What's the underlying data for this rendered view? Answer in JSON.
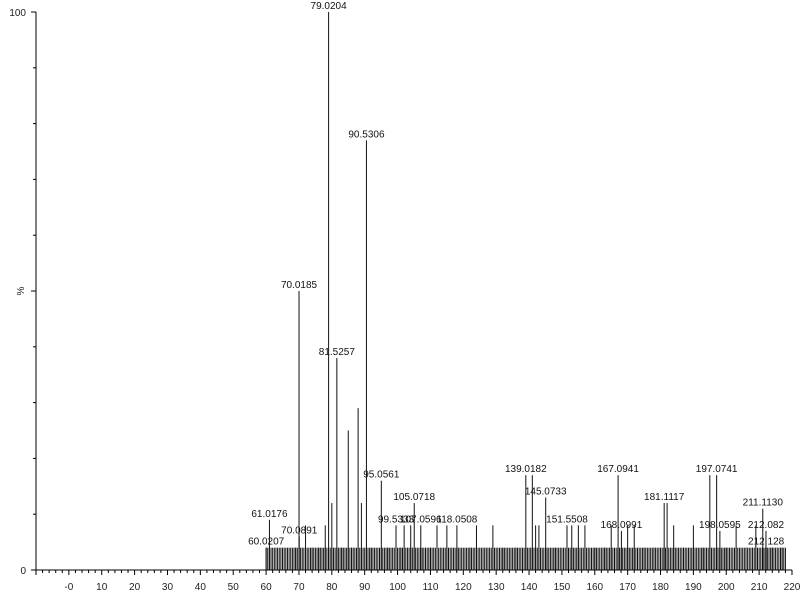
{
  "chart_data": {
    "type": "bar",
    "subtype": "mass-spectrum-stick",
    "title": "",
    "xlabel": "",
    "ylabel": "%",
    "xlim": [
      -10,
      220
    ],
    "ylim": [
      0,
      100
    ],
    "x_ticks": [
      0,
      10,
      20,
      30,
      40,
      50,
      60,
      70,
      80,
      90,
      100,
      110,
      120,
      130,
      140,
      150,
      160,
      170,
      180,
      190,
      200,
      210,
      220
    ],
    "x_tick_labels": [
      "-0",
      "10",
      "20",
      "30",
      "40",
      "50",
      "60",
      "70",
      "80",
      "90",
      "100",
      "110",
      "120",
      "130",
      "140",
      "150",
      "160",
      "170",
      "180",
      "190",
      "200",
      "210",
      "220"
    ],
    "y_ticks": [
      0,
      50,
      100
    ],
    "y_tick_labels": [
      "0",
      "%",
      "100"
    ],
    "grid": false,
    "legend": "none",
    "bar_color": "#111111",
    "peaks": [
      {
        "x": 60.02,
        "y": 4,
        "label": "60.0207"
      },
      {
        "x": 61.02,
        "y": 9,
        "label": "61.0176"
      },
      {
        "x": 69.0,
        "y": 4
      },
      {
        "x": 70.02,
        "y": 50,
        "label": "70.0185"
      },
      {
        "x": 70.09,
        "y": 6,
        "label": "70.0891"
      },
      {
        "x": 72.0,
        "y": 8
      },
      {
        "x": 74.0,
        "y": 4
      },
      {
        "x": 76.0,
        "y": 4
      },
      {
        "x": 78.0,
        "y": 8
      },
      {
        "x": 79.02,
        "y": 100,
        "label": "79.0204"
      },
      {
        "x": 80.0,
        "y": 12
      },
      {
        "x": 81.53,
        "y": 38,
        "label": "81.5257"
      },
      {
        "x": 83.0,
        "y": 4
      },
      {
        "x": 85.0,
        "y": 25
      },
      {
        "x": 86.0,
        "y": 4
      },
      {
        "x": 88.0,
        "y": 29
      },
      {
        "x": 89.0,
        "y": 12
      },
      {
        "x": 90.53,
        "y": 77,
        "label": "90.5306"
      },
      {
        "x": 92.0,
        "y": 4
      },
      {
        "x": 95.06,
        "y": 16,
        "label": "95.0561"
      },
      {
        "x": 97.0,
        "y": 4
      },
      {
        "x": 99.53,
        "y": 8,
        "label": "99.5333"
      },
      {
        "x": 101.0,
        "y": 4
      },
      {
        "x": 102.0,
        "y": 8
      },
      {
        "x": 104.0,
        "y": 8
      },
      {
        "x": 105.07,
        "y": 12,
        "label": "105.0718"
      },
      {
        "x": 107.06,
        "y": 8,
        "label": "107.0596"
      },
      {
        "x": 110.0,
        "y": 4
      },
      {
        "x": 112.0,
        "y": 8
      },
      {
        "x": 115.0,
        "y": 8
      },
      {
        "x": 118.05,
        "y": 8,
        "label": "118.0508"
      },
      {
        "x": 122.0,
        "y": 4
      },
      {
        "x": 124.0,
        "y": 8
      },
      {
        "x": 129.0,
        "y": 8
      },
      {
        "x": 132.0,
        "y": 4
      },
      {
        "x": 136.0,
        "y": 4
      },
      {
        "x": 139.02,
        "y": 17,
        "label": "139.0182"
      },
      {
        "x": 141.0,
        "y": 17
      },
      {
        "x": 142.0,
        "y": 8
      },
      {
        "x": 143.0,
        "y": 8
      },
      {
        "x": 145.07,
        "y": 13,
        "label": "145.0733"
      },
      {
        "x": 148.0,
        "y": 4
      },
      {
        "x": 151.55,
        "y": 8,
        "label": "151.5508"
      },
      {
        "x": 153.0,
        "y": 8
      },
      {
        "x": 155.0,
        "y": 8
      },
      {
        "x": 157.0,
        "y": 8
      },
      {
        "x": 160.0,
        "y": 4
      },
      {
        "x": 163.0,
        "y": 4
      },
      {
        "x": 165.0,
        "y": 8
      },
      {
        "x": 167.09,
        "y": 17,
        "label": "167.0941"
      },
      {
        "x": 168.1,
        "y": 7,
        "label": "168.0991"
      },
      {
        "x": 170.0,
        "y": 8
      },
      {
        "x": 172.0,
        "y": 8
      },
      {
        "x": 175.0,
        "y": 4
      },
      {
        "x": 178.0,
        "y": 4
      },
      {
        "x": 181.11,
        "y": 12,
        "label": "181.1117"
      },
      {
        "x": 182.0,
        "y": 12
      },
      {
        "x": 184.0,
        "y": 8
      },
      {
        "x": 187.0,
        "y": 4
      },
      {
        "x": 190.0,
        "y": 8
      },
      {
        "x": 193.0,
        "y": 4
      },
      {
        "x": 195.0,
        "y": 17
      },
      {
        "x": 197.07,
        "y": 17,
        "label": "197.0741"
      },
      {
        "x": 198.06,
        "y": 7,
        "label": "198.0595"
      },
      {
        "x": 200.0,
        "y": 4
      },
      {
        "x": 203.0,
        "y": 8
      },
      {
        "x": 206.0,
        "y": 4
      },
      {
        "x": 209.0,
        "y": 8
      },
      {
        "x": 211.11,
        "y": 11,
        "label": "211.1130"
      },
      {
        "x": 212.08,
        "y": 7,
        "label": "212.082"
      },
      {
        "x": 212.13,
        "y": 4,
        "label": "212.128"
      },
      {
        "x": 214.0,
        "y": 4
      },
      {
        "x": 217.0,
        "y": 4
      }
    ],
    "baseline_noise": {
      "x_start": 60,
      "x_end": 218,
      "step": 0.5,
      "y": 4
    }
  }
}
